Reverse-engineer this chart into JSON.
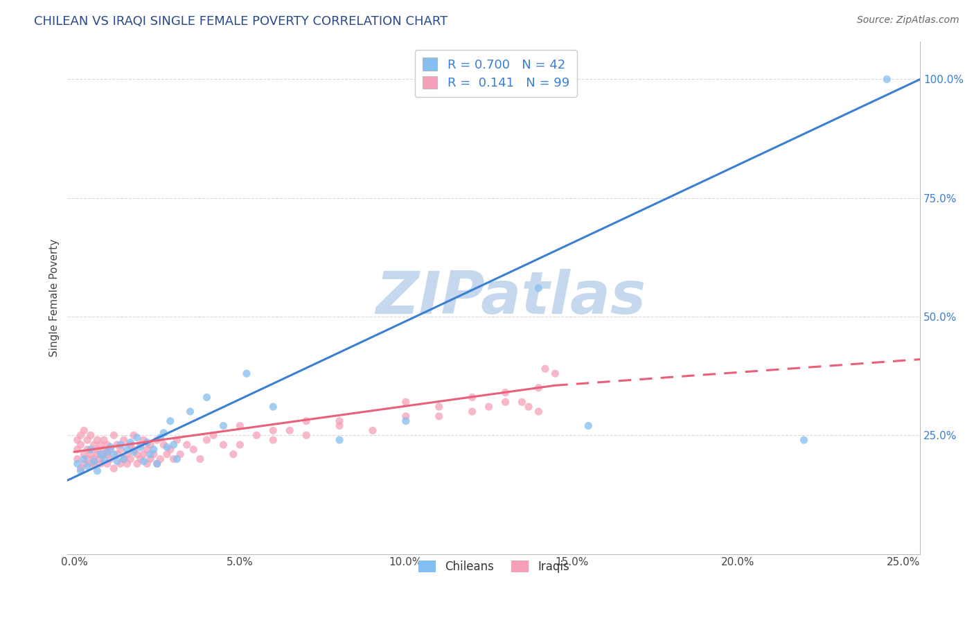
{
  "title": "CHILEAN VS IRAQI SINGLE FEMALE POVERTY CORRELATION CHART",
  "source_text": "Source: ZipAtlas.com",
  "ylabel": "Single Female Poverty",
  "xlim": [
    -0.002,
    0.255
  ],
  "ylim": [
    0.0,
    1.08
  ],
  "xticks": [
    0.0,
    0.05,
    0.1,
    0.15,
    0.2,
    0.25
  ],
  "xticklabels": [
    "0.0%",
    "5.0%",
    "10.0%",
    "15.0%",
    "20.0%",
    "25.0%"
  ],
  "yticks": [
    0.25,
    0.5,
    0.75,
    1.0
  ],
  "yticklabels": [
    "25.0%",
    "50.0%",
    "75.0%",
    "100.0%"
  ],
  "chilean_color": "#85bef0",
  "iraqi_color": "#f5a0b8",
  "chilean_line_color": "#3a7fd4",
  "iraqi_line_color": "#e8607a",
  "R_chilean": 0.7,
  "N_chilean": 42,
  "R_iraqi": 0.141,
  "N_iraqi": 99,
  "watermark": "ZIPatlas",
  "watermark_color": "#c5d8ee",
  "title_color": "#2a4a8a",
  "source_color": "#666666",
  "grid_color": "#d5d5d5",
  "legend_label_chilean": "Chileans",
  "legend_label_iraqi": "Iraqis",
  "chilean_x": [
    0.001,
    0.002,
    0.003,
    0.004,
    0.005,
    0.006,
    0.007,
    0.008,
    0.009,
    0.01,
    0.011,
    0.012,
    0.013,
    0.014,
    0.015,
    0.016,
    0.017,
    0.018,
    0.019,
    0.02,
    0.021,
    0.022,
    0.023,
    0.024,
    0.025,
    0.026,
    0.027,
    0.028,
    0.029,
    0.03,
    0.031,
    0.035,
    0.04,
    0.045,
    0.052,
    0.06,
    0.08,
    0.1,
    0.14,
    0.155,
    0.22,
    0.245
  ],
  "chilean_y": [
    0.19,
    0.175,
    0.2,
    0.185,
    0.22,
    0.195,
    0.175,
    0.21,
    0.2,
    0.215,
    0.225,
    0.21,
    0.195,
    0.23,
    0.2,
    0.22,
    0.235,
    0.215,
    0.245,
    0.225,
    0.195,
    0.235,
    0.21,
    0.22,
    0.19,
    0.245,
    0.255,
    0.225,
    0.28,
    0.23,
    0.2,
    0.3,
    0.33,
    0.27,
    0.38,
    0.31,
    0.24,
    0.28,
    0.56,
    0.27,
    0.24,
    1.0
  ],
  "iraqi_x": [
    0.001,
    0.001,
    0.001,
    0.002,
    0.002,
    0.002,
    0.003,
    0.003,
    0.003,
    0.004,
    0.004,
    0.004,
    0.005,
    0.005,
    0.005,
    0.006,
    0.006,
    0.006,
    0.007,
    0.007,
    0.007,
    0.008,
    0.008,
    0.008,
    0.009,
    0.009,
    0.009,
    0.01,
    0.01,
    0.01,
    0.011,
    0.011,
    0.012,
    0.012,
    0.013,
    0.013,
    0.014,
    0.014,
    0.015,
    0.015,
    0.016,
    0.016,
    0.017,
    0.017,
    0.018,
    0.018,
    0.019,
    0.019,
    0.02,
    0.02,
    0.021,
    0.021,
    0.022,
    0.022,
    0.023,
    0.023,
    0.024,
    0.025,
    0.025,
    0.026,
    0.027,
    0.028,
    0.029,
    0.03,
    0.031,
    0.032,
    0.034,
    0.036,
    0.038,
    0.04,
    0.042,
    0.045,
    0.048,
    0.05,
    0.055,
    0.06,
    0.065,
    0.07,
    0.08,
    0.09,
    0.1,
    0.11,
    0.12,
    0.13,
    0.14,
    0.145,
    0.1,
    0.11,
    0.12,
    0.125,
    0.13,
    0.135,
    0.137,
    0.14,
    0.142,
    0.05,
    0.06,
    0.07,
    0.08
  ],
  "iraqi_y": [
    0.2,
    0.22,
    0.24,
    0.18,
    0.23,
    0.25,
    0.21,
    0.19,
    0.26,
    0.2,
    0.24,
    0.22,
    0.19,
    0.21,
    0.25,
    0.2,
    0.23,
    0.19,
    0.22,
    0.21,
    0.24,
    0.2,
    0.23,
    0.19,
    0.21,
    0.22,
    0.24,
    0.19,
    0.21,
    0.23,
    0.2,
    0.22,
    0.18,
    0.25,
    0.21,
    0.23,
    0.19,
    0.22,
    0.2,
    0.24,
    0.21,
    0.19,
    0.23,
    0.2,
    0.22,
    0.25,
    0.19,
    0.21,
    0.2,
    0.23,
    0.24,
    0.21,
    0.19,
    0.22,
    0.2,
    0.23,
    0.21,
    0.19,
    0.24,
    0.2,
    0.23,
    0.21,
    0.22,
    0.2,
    0.24,
    0.21,
    0.23,
    0.22,
    0.2,
    0.24,
    0.25,
    0.23,
    0.21,
    0.23,
    0.25,
    0.24,
    0.26,
    0.25,
    0.28,
    0.26,
    0.29,
    0.31,
    0.3,
    0.32,
    0.35,
    0.38,
    0.32,
    0.29,
    0.33,
    0.31,
    0.34,
    0.32,
    0.31,
    0.3,
    0.39,
    0.27,
    0.26,
    0.28,
    0.27
  ],
  "chilean_line_x0": -0.002,
  "chilean_line_x1": 0.255,
  "chilean_line_y0": 0.155,
  "chilean_line_y1": 1.0,
  "iraqi_line_x0": 0.0,
  "iraqi_line_x1": 0.145,
  "iraqi_line_xdash0": 0.145,
  "iraqi_line_xdash1": 0.255,
  "iraqi_line_y0": 0.215,
  "iraqi_line_y1": 0.355,
  "iraqi_line_ydash1": 0.41
}
